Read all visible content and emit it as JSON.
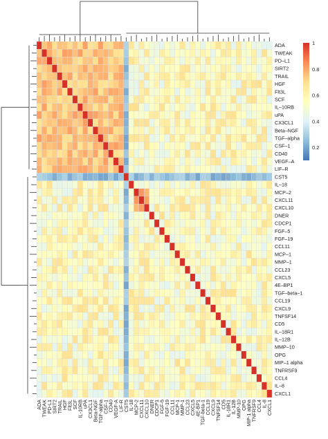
{
  "chart_data": {
    "type": "heatmap",
    "title": "",
    "xlabel": "",
    "ylabel": "",
    "labels": [
      "ADA",
      "TWEAK",
      "PD-L1",
      "SIRT2",
      "TRAIL",
      "HGF",
      "Flt3L",
      "SCF",
      "IL-10RB",
      "uPA",
      "CX3CL1",
      "Beta-NGF",
      "TGF-alpha",
      "CSF-1",
      "CD40",
      "VEGF-A",
      "LIF-R",
      "CST5",
      "IL-18",
      "MCP-2",
      "CXCL11",
      "CXCL10",
      "DNER",
      "CDCP1",
      "FGF-5",
      "FGF-19",
      "CCL11",
      "MCP-1",
      "MMP-1",
      "CCL23",
      "CXCL5",
      "4E-BP1",
      "TGF-beta-1",
      "CCL19",
      "CXCL9",
      "TNFSF14",
      "CD5",
      "IL-18R1",
      "IL-12B",
      "MMP-10",
      "OPG",
      "MIP-1 alpha",
      "TNFRSF9",
      "CCL4",
      "IL-8",
      "CXCL1"
    ],
    "x_tick_labels": [
      "ADA",
      "TWEAK",
      "PD-L1",
      "SIRT2",
      "TRAIL",
      "HGF",
      "Flt3L",
      "SCF",
      "IL-10RB",
      "uPA",
      "CX3CL1",
      "Beta-NGF",
      "TGF-alpha",
      "CSF-1",
      "CD40",
      "VEGF-A",
      "LIF-R",
      "CST5",
      "IL-18",
      "MCP-2",
      "CXCL11",
      "CXCL10",
      "DNER",
      "CDCP1",
      "FGF-5",
      "FGF-19",
      "CCL11",
      "MCP-1",
      "MMP-1",
      "CCL23",
      "CXCL5",
      "4E-BP1",
      "TGF-beta-1",
      "CCL19",
      "CXCL9",
      "TNFSF14",
      "CD5",
      "IL-18R1",
      "IL-12B",
      "MMP-10",
      "OPG",
      "MIP-1 alpha",
      "TNFRSF9",
      "CCL4",
      "IL-8",
      "CXCL1"
    ],
    "y_tick_labels": [
      "ADA",
      "TWEAK",
      "PD–L1",
      "SIRT2",
      "TRAIL",
      "HGF",
      "Flt3L",
      "SCF",
      "IL–10RB",
      "uPA",
      "CX3CL1",
      "Beta–NGF",
      "TGF–alpha",
      "CSF–1",
      "CD40",
      "VEGF–A",
      "LIF–R",
      "CST5",
      "IL–18",
      "MCP–2",
      "CXCL11",
      "CXCL10",
      "DNER",
      "CDCP1",
      "FGF–5",
      "FGF–19",
      "CCL11",
      "MCP–1",
      "MMP–1",
      "CCL23",
      "CXCL5",
      "4E–BP1",
      "TGF–beta–1",
      "CCL19",
      "CXCL9",
      "TNFSF14",
      "CD5",
      "IL–18R1",
      "IL–12B",
      "MMP–10",
      "OPG",
      "MIP–1 alpha",
      "TNFRSF9",
      "CCL4",
      "IL–8",
      "CXCL1"
    ],
    "value_range": [
      0.1,
      1
    ],
    "legend": {
      "position": "right",
      "ticks": [
        1,
        0.8,
        0.6,
        0.4,
        0.2
      ],
      "tick_labels": [
        "1",
        "0.8",
        "0.6",
        "0.4",
        "0.2"
      ],
      "colors": [
        "#d73027",
        "#fc8d59",
        "#fee090",
        "#ffffbf",
        "#e0f3f8",
        "#91bfdb",
        "#4575b4"
      ]
    },
    "clusters": {
      "inflammatory_block": {
        "start": 0,
        "end": 16,
        "level": 0.75
      },
      "chemokine_block": {
        "start": 19,
        "end": 21,
        "level": 0.8
      }
    },
    "low_correlation_row": {
      "index": 17,
      "level": 0.25
    },
    "low_correlation_column": {
      "index": 17,
      "level": 0.25
    },
    "background_level": 0.56,
    "diagonal": 1,
    "dendrograms": [
      "top",
      "left"
    ]
  }
}
